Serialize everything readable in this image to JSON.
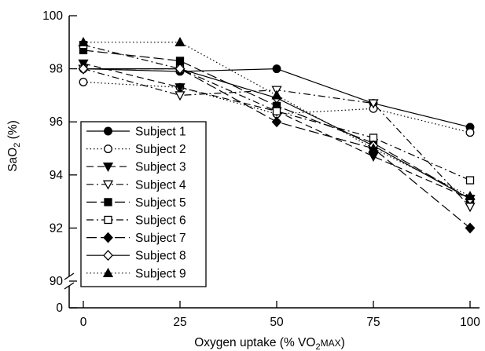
{
  "chart_data": {
    "type": "line",
    "x": [
      0,
      25,
      50,
      75,
      100
    ],
    "x_tick_labels": [
      "0",
      "25",
      "50",
      "75",
      "100"
    ],
    "y_tick_labels": [
      "0",
      "90",
      "92",
      "94",
      "96",
      "98",
      "100"
    ],
    "ylim": [
      90,
      100
    ],
    "y_axis_break": true,
    "xlabel_main": "Oxygen uptake (% V",
    "xlabel_sub": "O",
    "xlabel_subscript": "2",
    "xlabel_smallcaps": "MAX",
    "xlabel_end": ")",
    "ylabel_main": "Sa",
    "ylabel_sub": "O",
    "ylabel_subscript": "2",
    "ylabel_end": " (%)",
    "grid": false,
    "legend_position": "bottom-left",
    "series": [
      {
        "name": "Subject 1",
        "marker": "circle-filled",
        "dash": "solid",
        "values": [
          98.0,
          97.9,
          98.0,
          96.7,
          95.8
        ]
      },
      {
        "name": "Subject 2",
        "marker": "circle-open",
        "dash": "dotted",
        "values": [
          97.5,
          97.3,
          96.3,
          96.5,
          95.6
        ]
      },
      {
        "name": "Subject 3",
        "marker": "triangle-down-filled",
        "dash": "dashed",
        "values": [
          98.2,
          97.3,
          96.4,
          94.7,
          93.1
        ]
      },
      {
        "name": "Subject 4",
        "marker": "triangle-down-open",
        "dash": "dashdot",
        "values": [
          98.0,
          97.0,
          97.2,
          96.7,
          92.8
        ]
      },
      {
        "name": "Subject 5",
        "marker": "square-filled",
        "dash": "longdash",
        "values": [
          98.7,
          98.3,
          96.6,
          95.2,
          93.1
        ]
      },
      {
        "name": "Subject 6",
        "marker": "square-open",
        "dash": "dashdot",
        "values": [
          98.9,
          98.0,
          96.4,
          95.4,
          93.8
        ]
      },
      {
        "name": "Subject 7",
        "marker": "diamond-filled",
        "dash": "longdash",
        "values": [
          98.0,
          98.0,
          96.0,
          95.0,
          92.0
        ]
      },
      {
        "name": "Subject 8",
        "marker": "diamond-open",
        "dash": "solid",
        "values": [
          98.0,
          98.0,
          96.9,
          95.1,
          93.1
        ]
      },
      {
        "name": "Subject 9",
        "marker": "triangle-up-filled",
        "dash": "dotted",
        "values": [
          99.0,
          99.0,
          97.0,
          95.0,
          93.2
        ]
      }
    ]
  }
}
